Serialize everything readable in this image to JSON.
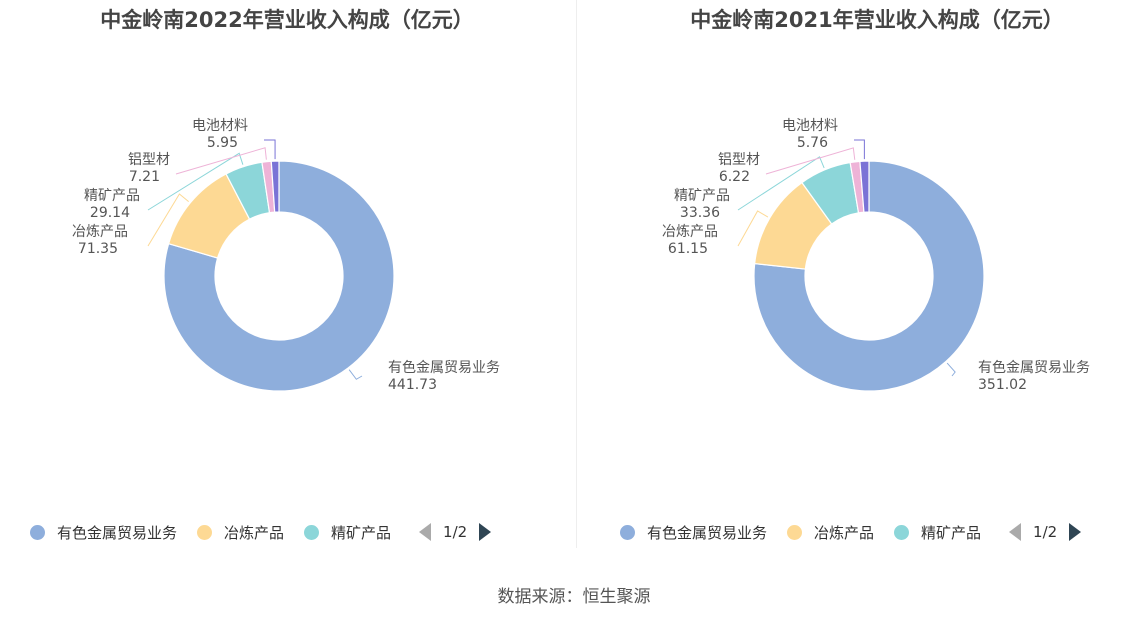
{
  "colors": {
    "有色金属贸易业务": "#8eaedc",
    "冶炼产品": "#fdd994",
    "精矿产品": "#8cd6d9",
    "铝型材": "#eeb3d7",
    "电池材料": "#7a73d6"
  },
  "legend_pager": "1/2",
  "source": "数据来源：恒生聚源",
  "chart_data": [
    {
      "type": "pie",
      "title": "中金岭南2022年营业收入构成（亿元）",
      "slices": [
        {
          "name": "有色金属贸易业务",
          "value": 441.73,
          "value_label": "441.73"
        },
        {
          "name": "冶炼产品",
          "value": 71.35,
          "value_label": "71.35"
        },
        {
          "name": "精矿产品",
          "value": 29.14,
          "value_label": "29.14"
        },
        {
          "name": "铝型材",
          "value": 7.21,
          "value_label": "7.21"
        },
        {
          "name": "电池材料",
          "value": 5.95,
          "value_label": "5.95"
        }
      ],
      "legend": [
        "有色金属贸易业务",
        "冶炼产品",
        "精矿产品"
      ]
    },
    {
      "type": "pie",
      "title": "中金岭南2021年营业收入构成（亿元）",
      "slices": [
        {
          "name": "有色金属贸易业务",
          "value": 351.02,
          "value_label": "351.02"
        },
        {
          "name": "冶炼产品",
          "value": 61.15,
          "value_label": "61.15"
        },
        {
          "name": "精矿产品",
          "value": 33.36,
          "value_label": "33.36"
        },
        {
          "name": "铝型材",
          "value": 6.22,
          "value_label": "6.22"
        },
        {
          "name": "电池材料",
          "value": 5.76,
          "value_label": "5.76"
        }
      ],
      "legend": [
        "有色金属贸易业务",
        "冶炼产品",
        "精矿产品"
      ]
    }
  ]
}
